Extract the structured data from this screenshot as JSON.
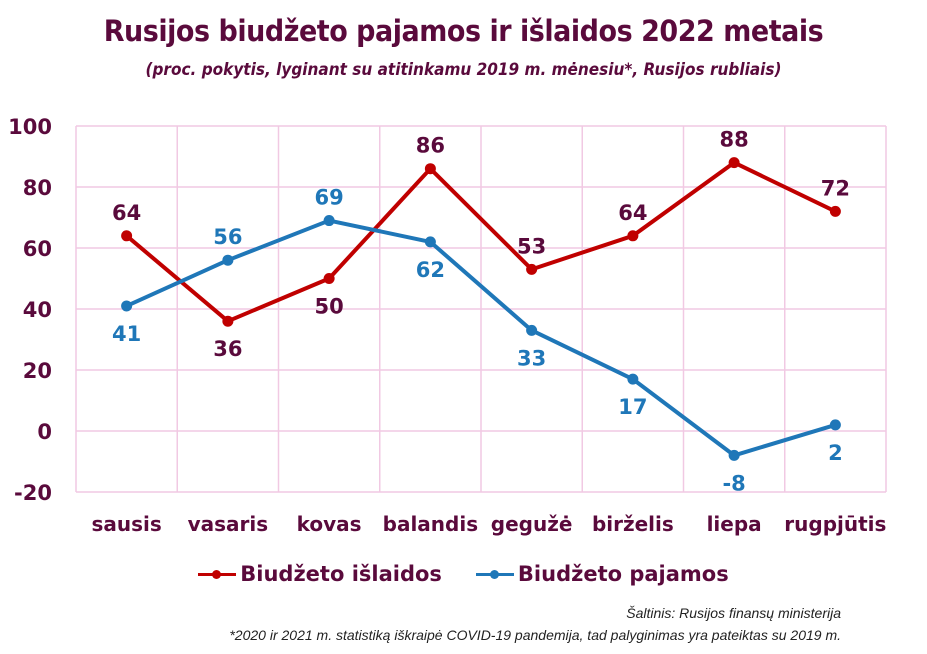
{
  "colors": {
    "title": "#5a0a3c",
    "expenses": "#c00000",
    "revenue": "#1f77b8",
    "grid": "#f1c9e3",
    "axis_text": "#5a0a3c"
  },
  "chart_data": {
    "type": "line",
    "title": "Rusijos biudžeto pajamos ir išlaidos 2022 metais",
    "subtitle": "(proc. pokytis, lyginant su atitinkamu 2019 m. mėnesiu*, Rusijos rubliais)",
    "xlabel": "",
    "ylabel": "",
    "categories": [
      "sausis",
      "vasaris",
      "kovas",
      "balandis",
      "gegužė",
      "birželis",
      "liepa",
      "rugpjūtis"
    ],
    "ylim": [
      -20,
      100
    ],
    "yticks": [
      -20,
      0,
      20,
      40,
      60,
      80,
      100
    ],
    "grid": true,
    "legend_position": "bottom",
    "series": [
      {
        "name": "Biudžeto išlaidos",
        "color": "#c00000",
        "values": [
          64,
          36,
          50,
          86,
          53,
          64,
          88,
          72
        ],
        "label_positions": [
          "above",
          "below",
          "below",
          "above",
          "above",
          "above",
          "above",
          "above"
        ]
      },
      {
        "name": "Biudžeto pajamos",
        "color": "#1f77b8",
        "values": [
          41,
          56,
          69,
          62,
          33,
          17,
          -8,
          2
        ],
        "label_positions": [
          "below",
          "above",
          "above",
          "below",
          "below",
          "below",
          "below",
          "below"
        ]
      }
    ]
  },
  "footer": {
    "source": "Šaltinis: Rusijos finansų ministerija",
    "footnote": "*2020 ir 2021 m. statistiką iškraipė COVID-19 pandemija, tad palyginimas yra pateiktas su 2019 m."
  }
}
